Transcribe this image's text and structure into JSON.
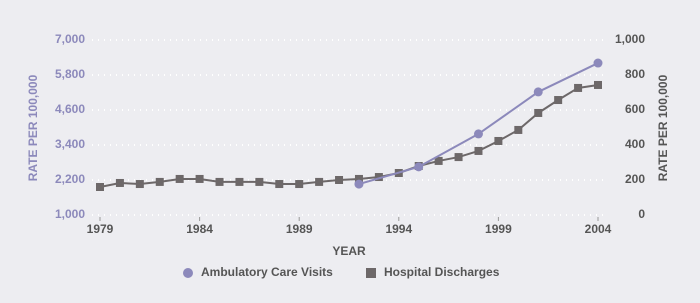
{
  "chart_data": {
    "type": "line",
    "x_label": "YEAR",
    "y_label": "RATE PER 100,000",
    "y2_label": "RATE PER 100,000",
    "xlim": [
      1979,
      2004
    ],
    "xticks": [
      1979,
      1984,
      1989,
      1994,
      1999,
      2004
    ],
    "ylim": [
      1000,
      7000
    ],
    "yticks": [
      {
        "value": 1000,
        "label": "1,000"
      },
      {
        "value": 2200,
        "label": "2,200"
      },
      {
        "value": 3400,
        "label": "3,400"
      },
      {
        "value": 4600,
        "label": "4,600"
      },
      {
        "value": 5800,
        "label": "5,800"
      },
      {
        "value": 7000,
        "label": "7,000"
      }
    ],
    "y2lim": [
      0,
      1000
    ],
    "y2ticks": [
      0,
      200,
      400,
      600,
      800,
      {
        "value": 1000,
        "label": "1,000"
      }
    ],
    "grid": true,
    "legend": "bottom",
    "series": [
      {
        "name": "Hospital Discharges",
        "color": "#6d6869",
        "marker": "square",
        "axis": "y2",
        "x": [
          1979,
          1980,
          1981,
          1982,
          1983,
          1984,
          1985,
          1986,
          1987,
          1988,
          1989,
          1990,
          1991,
          1992,
          1993,
          1994,
          1995,
          1996,
          1997,
          1998,
          1999,
          2000,
          2001,
          2002,
          2003,
          2004
        ],
        "values": [
          160,
          183,
          177,
          189,
          206,
          206,
          189,
          189,
          189,
          177,
          177,
          189,
          200,
          206,
          217,
          240,
          280,
          309,
          331,
          366,
          423,
          486,
          583,
          657,
          726,
          743
        ]
      },
      {
        "name": "Ambulatory Care Visits",
        "color": "#8c89bb",
        "marker": "circle",
        "x": [
          1992,
          1995,
          1998,
          2001,
          2004
        ],
        "values": [
          2060,
          2650,
          3780,
          5220,
          6210
        ]
      }
    ]
  }
}
